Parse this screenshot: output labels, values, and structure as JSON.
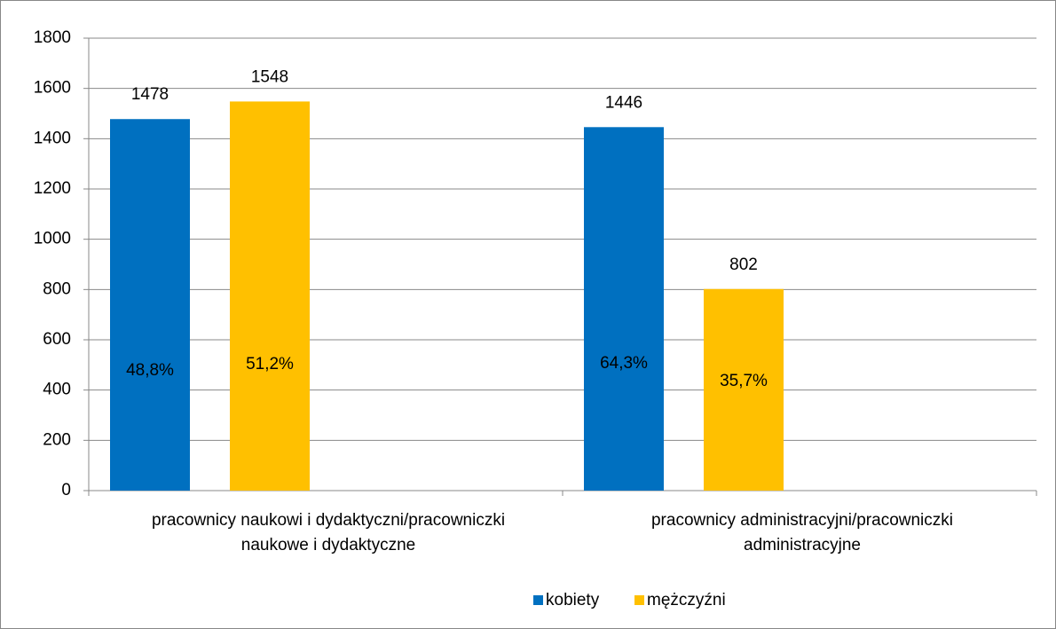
{
  "chart_data": {
    "type": "bar",
    "categories": [
      "pracownicy naukowi i dydaktyczni/pracowniczki\nnaukowe i dydaktyczne",
      "pracownicy administracyjni/pracowniczki\nadministracyjne"
    ],
    "series": [
      {
        "name": "kobiety",
        "color": "#0070c0",
        "values": [
          1478,
          1446
        ],
        "percent": [
          48.8,
          64.3
        ],
        "percent_labels": [
          "48,8%",
          "64,3%"
        ]
      },
      {
        "name": "mężczyźni",
        "color": "#ffc000",
        "values": [
          1548,
          802
        ],
        "percent": [
          51.2,
          35.7
        ],
        "percent_labels": [
          "51,2%",
          "35,7%"
        ]
      }
    ],
    "ylim": [
      0,
      1800
    ],
    "yticks": [
      0,
      200,
      400,
      600,
      800,
      1000,
      1200,
      1400,
      1600,
      1800
    ],
    "grid": true,
    "legend": "bottom"
  }
}
